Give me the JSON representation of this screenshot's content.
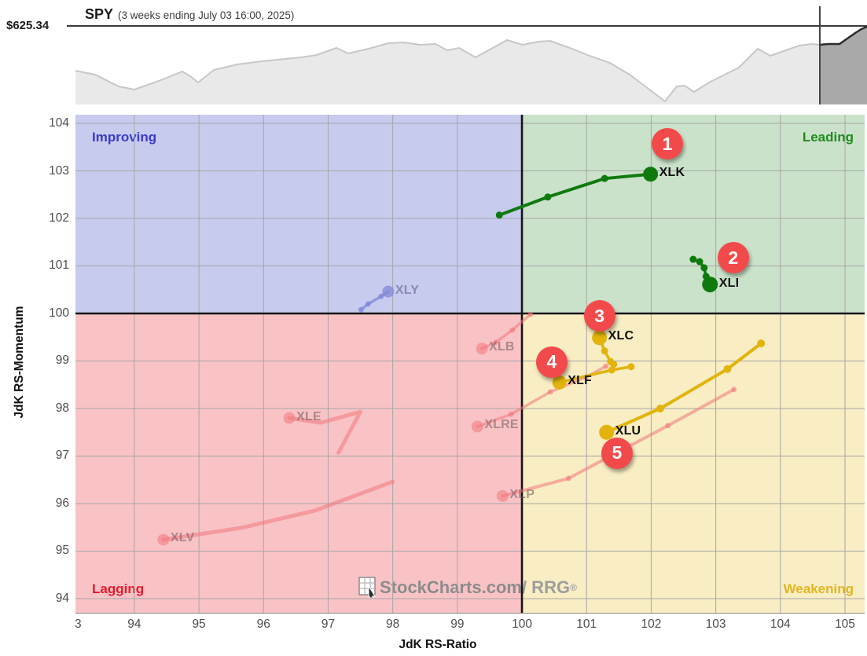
{
  "header": {
    "price_label": "$625.34",
    "symbol": "SPY",
    "subtitle": "(3 weeks ending July 03 16:00, 2025)"
  },
  "sparkline": {
    "fill_color": "#e9e9e9",
    "line_color": "#c7c7c7",
    "selected_fill": "#a9a9a9",
    "selected_line": "#2b2b2b",
    "window_start_x": 947,
    "points": [
      [
        0,
        60
      ],
      [
        25,
        65
      ],
      [
        55,
        80
      ],
      [
        75,
        84
      ],
      [
        106,
        73
      ],
      [
        126,
        65
      ],
      [
        136,
        61
      ],
      [
        146,
        67
      ],
      [
        156,
        75
      ],
      [
        176,
        59
      ],
      [
        206,
        52
      ],
      [
        237,
        48
      ],
      [
        267,
        45
      ],
      [
        287,
        43
      ],
      [
        307,
        40
      ],
      [
        332,
        31
      ],
      [
        347,
        38
      ],
      [
        373,
        32
      ],
      [
        398,
        25
      ],
      [
        418,
        24
      ],
      [
        438,
        27
      ],
      [
        458,
        26
      ],
      [
        473,
        34
      ],
      [
        488,
        31
      ],
      [
        509,
        43
      ],
      [
        529,
        32
      ],
      [
        549,
        21
      ],
      [
        569,
        27
      ],
      [
        589,
        23
      ],
      [
        604,
        22
      ],
      [
        629,
        31
      ],
      [
        654,
        41
      ],
      [
        680,
        50
      ],
      [
        705,
        65
      ],
      [
        725,
        80
      ],
      [
        750,
        99
      ],
      [
        765,
        80
      ],
      [
        775,
        79
      ],
      [
        787,
        87
      ],
      [
        806,
        75
      ],
      [
        826,
        65
      ],
      [
        844,
        56
      ],
      [
        868,
        32
      ],
      [
        884,
        41
      ],
      [
        901,
        35
      ],
      [
        921,
        28
      ],
      [
        936,
        26
      ],
      [
        947,
        27
      ]
    ],
    "selected_points": [
      [
        947,
        27
      ],
      [
        958,
        26
      ],
      [
        972,
        26
      ],
      [
        982,
        19
      ],
      [
        992,
        12
      ],
      [
        1000,
        7
      ],
      [
        1007,
        4
      ]
    ]
  },
  "watermark": {
    "text": "StockCharts.com",
    "suffix": "/ RRG",
    "reg": "®"
  },
  "chart_data": {
    "type": "scatter",
    "title": "SPY (3 weeks ending July 03 16:00, 2025)",
    "xlabel": "JdK RS-Ratio",
    "ylabel": "JdK RS-Momentum",
    "xlim": [
      93.089,
      105.304
    ],
    "ylim": [
      93.702,
      104.182
    ],
    "grid": true,
    "xgrid": [
      94,
      95,
      96,
      97,
      98,
      99,
      100,
      101,
      102,
      103,
      104,
      105
    ],
    "ygrid": [
      94,
      95,
      96,
      97,
      98,
      99,
      100,
      101,
      102,
      103,
      104
    ],
    "xticks": {
      "values": [
        93.13,
        94,
        95,
        96,
        97,
        98,
        99,
        100,
        101,
        102,
        103,
        104,
        105
      ],
      "labels": [
        "3",
        "94",
        "95",
        "96",
        "97",
        "98",
        "99",
        "100",
        "101",
        "102",
        "103",
        "104",
        "105"
      ]
    },
    "yticks": {
      "values": [
        94,
        95,
        96,
        97,
        98,
        99,
        100,
        101,
        102,
        103,
        104
      ],
      "labels": [
        "94",
        "95",
        "96",
        "97",
        "98",
        "99",
        "100",
        "101",
        "102",
        "103",
        "104"
      ]
    },
    "grid_color": "#a6a6a6",
    "divider_color": "#151515",
    "quadrants": {
      "improving": {
        "label": "Improving",
        "bg": "#c7cbee",
        "label_color": "#3a3acc"
      },
      "leading": {
        "label": "Leading",
        "bg": "#cbe2ca",
        "label_color": "#1e8c1e"
      },
      "lagging": {
        "label": "Lagging",
        "bg": "#f9c3c6",
        "label_color": "#e8192c"
      },
      "weakening": {
        "label": "Weakening",
        "bg": "#f8edc3",
        "label_color": "#e3b61f"
      }
    },
    "badge_color": "#f24a4a",
    "series": [
      {
        "name": "XLY",
        "group": "faded-blue",
        "color": "rgba(128,136,214,0.75)",
        "label_color": "rgba(95,95,145,0.6)",
        "width": 3.5,
        "dots": true,
        "dot_r": 3.5,
        "head_r": 7.5,
        "points": [
          [
            97.51,
            100.08
          ],
          [
            97.62,
            100.2
          ],
          [
            97.82,
            100.36
          ],
          [
            97.93,
            100.46
          ]
        ]
      },
      {
        "name": "XLB",
        "group": "faded-pink",
        "color": "rgba(242,118,124,0.55)",
        "label_color": "rgba(110,85,85,0.55)",
        "width": 3.5,
        "dots": true,
        "dot_r": 3.5,
        "head_r": 7.5,
        "points": [
          [
            100.13,
            99.98
          ],
          [
            99.85,
            99.65
          ],
          [
            99.59,
            99.39
          ],
          [
            99.38,
            99.26
          ]
        ]
      },
      {
        "name": "XLRE",
        "group": "faded-pink",
        "color": "rgba(242,118,124,0.55)",
        "label_color": "rgba(110,85,85,0.55)",
        "width": 3.5,
        "dots": true,
        "dot_r": 3.5,
        "head_r": 7.5,
        "points": [
          [
            101.3,
            98.89
          ],
          [
            100.99,
            98.66
          ],
          [
            100.44,
            98.35
          ],
          [
            99.83,
            97.88
          ],
          [
            99.31,
            97.62
          ]
        ]
      },
      {
        "name": "XLE",
        "group": "faded-pink",
        "color": "rgba(242,118,124,0.55)",
        "label_color": "rgba(110,85,85,0.55)",
        "width": 5,
        "dots": false,
        "dot_r": 3.5,
        "head_r": 7.5,
        "points": [
          [
            97.16,
            97.07
          ],
          [
            97.5,
            97.93
          ],
          [
            96.88,
            97.7
          ],
          [
            96.4,
            97.8
          ]
        ]
      },
      {
        "name": "XLP",
        "group": "faded-pink",
        "color": "rgba(242,118,124,0.55)",
        "label_color": "rgba(110,85,85,0.55)",
        "width": 4,
        "dots": true,
        "dot_r": 3.5,
        "head_r": 7.5,
        "points": [
          [
            103.28,
            98.4
          ],
          [
            102.26,
            97.64
          ],
          [
            100.72,
            96.53
          ],
          [
            99.7,
            96.16
          ]
        ]
      },
      {
        "name": "XLV",
        "group": "faded-pink",
        "color": "rgba(242,118,124,0.55)",
        "label_color": "rgba(110,85,85,0.55)",
        "width": 5,
        "dots": false,
        "dot_r": 3.5,
        "head_r": 7.5,
        "points": [
          [
            98.0,
            96.46
          ],
          [
            96.79,
            95.85
          ],
          [
            95.66,
            95.49
          ],
          [
            94.45,
            95.24
          ]
        ]
      },
      {
        "name": "XLK",
        "group": "active",
        "color": "#0e7a0e",
        "label_color": "#101010",
        "width": 4,
        "dots": true,
        "dot_r": 4.5,
        "head_r": 9.5,
        "badge": "1",
        "points": [
          [
            99.65,
            102.07
          ],
          [
            100.4,
            102.45
          ],
          [
            101.28,
            102.84
          ],
          [
            101.99,
            102.93
          ]
        ]
      },
      {
        "name": "XLI",
        "group": "active",
        "color": "#0e7a0e",
        "label_color": "#101010",
        "width": 3.5,
        "dots": true,
        "dot_r": 4.5,
        "head_r": 10,
        "badge": "2",
        "points": [
          [
            102.65,
            101.14
          ],
          [
            102.75,
            101.09
          ],
          [
            102.82,
            100.96
          ],
          [
            102.85,
            100.78
          ],
          [
            102.91,
            100.61
          ]
        ]
      },
      {
        "name": "XLC",
        "group": "active",
        "color": "#e2b40b",
        "label_color": "#101010",
        "width": 3.5,
        "dots": true,
        "dot_r": 4.5,
        "head_r": 9.5,
        "badge": "3",
        "points": [
          [
            101.42,
            98.93
          ],
          [
            101.37,
            98.99
          ],
          [
            101.28,
            99.21
          ],
          [
            101.2,
            99.49
          ]
        ]
      },
      {
        "name": "XLF",
        "group": "active",
        "color": "#e2b40b",
        "label_color": "#101010",
        "width": 3.5,
        "dots": true,
        "dot_r": 4.5,
        "head_r": 9,
        "badge": "4",
        "points": [
          [
            101.69,
            98.88
          ],
          [
            101.39,
            98.81
          ],
          [
            100.58,
            98.55
          ]
        ]
      },
      {
        "name": "XLU",
        "group": "active",
        "color": "#e2b40b",
        "label_color": "#101010",
        "width": 4,
        "dots": true,
        "dot_r": 5,
        "head_r": 9.5,
        "badge": "5",
        "points": [
          [
            103.7,
            99.37
          ],
          [
            103.18,
            98.83
          ],
          [
            102.14,
            98.0
          ],
          [
            101.31,
            97.5
          ]
        ]
      }
    ],
    "badges": [
      {
        "n": "1",
        "x": 102.25,
        "y": 103.57
      },
      {
        "n": "2",
        "x": 103.27,
        "y": 101.17
      },
      {
        "n": "3",
        "x": 101.2,
        "y": 99.95
      },
      {
        "n": "4",
        "x": 100.46,
        "y": 98.98
      },
      {
        "n": "5",
        "x": 101.47,
        "y": 97.06
      }
    ]
  }
}
